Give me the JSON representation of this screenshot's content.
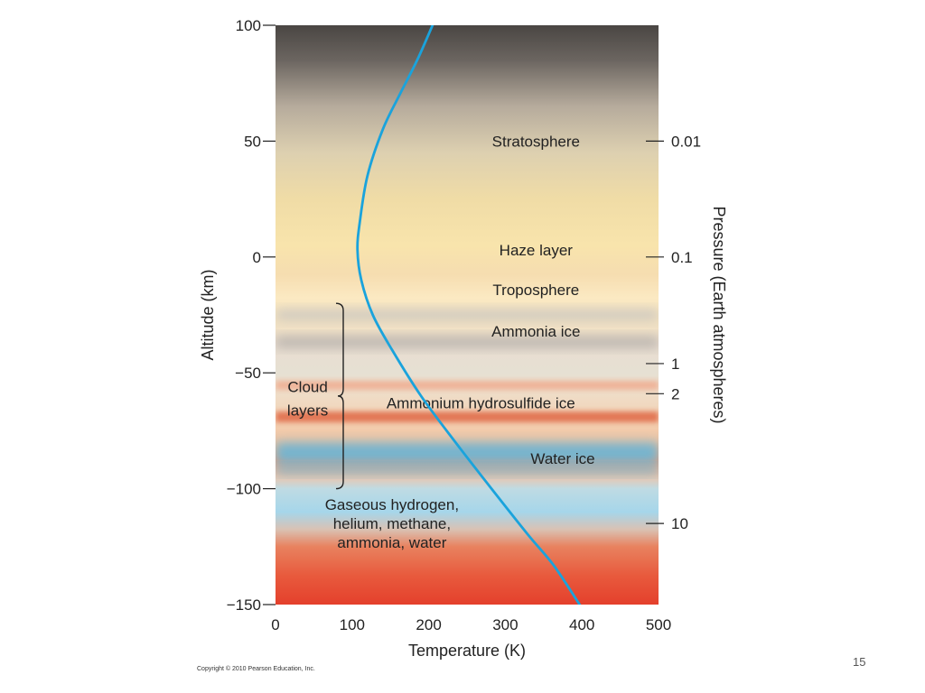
{
  "chart_data": {
    "type": "line",
    "xlabel": "Temperature (K)",
    "ylabel": "Altitude (km)",
    "y2label": "Pressure (Earth atmospheres)",
    "xlim": [
      0,
      500
    ],
    "ylim": [
      -150,
      100
    ],
    "x_ticks": [
      0,
      100,
      200,
      300,
      400,
      500
    ],
    "y_ticks": [
      100,
      50,
      0,
      -50,
      -100,
      -150
    ],
    "x_tick_labels": [
      "0",
      "100",
      "200",
      "300",
      "400",
      "500"
    ],
    "y_tick_labels": [
      "100",
      "50",
      "0",
      "−50",
      "−100",
      "−150"
    ],
    "pressure_ticks": [
      {
        "label": "0.01",
        "altitude": 50
      },
      {
        "label": "0.1",
        "altitude": 0
      },
      {
        "label": "1",
        "altitude": -46
      },
      {
        "label": "2",
        "altitude": -59
      },
      {
        "label": "10",
        "altitude": -115
      }
    ],
    "series": [
      {
        "color": "#1aa3dc",
        "x": [
          205,
          185,
          162,
          140,
          120,
          110,
          107,
          112,
          127,
          152,
          190,
          235,
          282,
          330,
          363,
          397
        ],
        "y": [
          100,
          85,
          70,
          55,
          35,
          15,
          3,
          -10,
          -25,
          -40,
          -60,
          -80,
          -100,
          -120,
          -133,
          -150
        ]
      }
    ],
    "annotations": [
      {
        "text": "Stratosphere",
        "x": 340,
        "y": 50
      },
      {
        "text": "Haze layer",
        "x": 340,
        "y": 3
      },
      {
        "text": "Troposphere",
        "x": 340,
        "y": -14
      },
      {
        "text": "Ammonia ice",
        "x": 340,
        "y": -32
      },
      {
        "text": "Ammonium hydrosulfide ice",
        "x": 268,
        "y": -63
      },
      {
        "text": "Water ice",
        "x": 375,
        "y": -87
      },
      {
        "text": "Cloud",
        "x": 42,
        "y": -56
      },
      {
        "text": "layers",
        "x": 42,
        "y": -66
      }
    ],
    "gas_annotation": {
      "lines": [
        "Gaseous hydrogen,",
        "helium, methane,",
        "ammonia, water"
      ],
      "x": 152,
      "y": -115
    },
    "bracket": {
      "from": -20,
      "to": -100
    }
  },
  "footer": {
    "copyright": "Copyright © 2010 Pearson Education, Inc.",
    "slide_number": "15"
  }
}
